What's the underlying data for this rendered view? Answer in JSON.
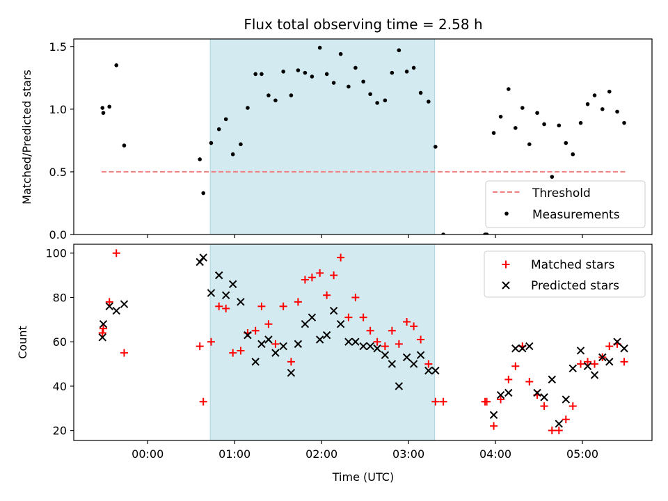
{
  "chart_data": [
    {
      "type": "scatter",
      "title": "Flux total observing time = 2.58 h",
      "xlabel": "",
      "ylabel": "Matched/Predicted stars",
      "xlim": [
        -0.85,
        5.8
      ],
      "ylim": [
        0,
        1.56
      ],
      "yticks": [
        0.0,
        0.5,
        1.0,
        1.5
      ],
      "ytick_labels": [
        "0.0",
        "0.5",
        "1.0",
        "1.5"
      ],
      "shaded_span": {
        "x0": 0.72,
        "x1": 3.3,
        "color": "#d3ebf0"
      },
      "threshold": {
        "name": "Threshold",
        "value": 0.5,
        "x0": -0.53,
        "x1": 5.5,
        "color": "#f08080"
      },
      "legend": {
        "position": "lower-right",
        "entries": [
          "Threshold",
          "Measurements"
        ]
      },
      "series": [
        {
          "name": "Measurements",
          "marker": "dot",
          "color": "#000000",
          "x": [
            -0.52,
            -0.51,
            -0.44,
            -0.36,
            -0.27,
            0.6,
            0.64,
            0.73,
            0.82,
            0.9,
            0.98,
            1.07,
            1.15,
            1.24,
            1.31,
            1.39,
            1.47,
            1.56,
            1.65,
            1.73,
            1.81,
            1.89,
            1.98,
            2.06,
            2.14,
            2.22,
            2.31,
            2.39,
            2.48,
            2.56,
            2.64,
            2.73,
            2.81,
            2.89,
            2.98,
            3.06,
            3.14,
            3.23,
            3.31,
            3.4,
            3.88,
            3.9,
            3.98,
            4.06,
            4.15,
            4.23,
            4.31,
            4.39,
            4.48,
            4.56,
            4.65,
            4.73,
            4.81,
            4.89,
            4.98,
            5.06,
            5.14,
            5.23,
            5.31,
            5.4,
            5.48
          ],
          "y": [
            1.01,
            0.97,
            1.02,
            1.35,
            0.71,
            0.6,
            0.33,
            0.73,
            0.84,
            0.92,
            0.64,
            0.72,
            1.01,
            1.28,
            1.28,
            1.11,
            1.07,
            1.3,
            1.11,
            1.31,
            1.29,
            1.26,
            1.49,
            1.28,
            1.21,
            1.44,
            1.18,
            1.33,
            1.22,
            1.12,
            1.05,
            1.07,
            1.29,
            1.47,
            1.3,
            1.33,
            1.13,
            1.06,
            0.7,
            0.0,
            0.0,
            0.0,
            0.81,
            0.94,
            1.16,
            0.85,
            1.01,
            0.72,
            0.97,
            0.88,
            0.46,
            0.87,
            0.73,
            0.64,
            0.89,
            1.04,
            1.11,
            1.0,
            1.14,
            0.98,
            0.89
          ]
        }
      ]
    },
    {
      "type": "scatter",
      "title": "",
      "xlabel": "Time (UTC)",
      "ylabel": "Count",
      "xlim": [
        -0.85,
        5.8
      ],
      "ylim": [
        15.5,
        104
      ],
      "yticks": [
        20,
        40,
        60,
        80,
        100
      ],
      "ytick_labels": [
        "20",
        "40",
        "60",
        "80",
        "100"
      ],
      "xticks": [
        0,
        1,
        2,
        3,
        4,
        5
      ],
      "xtick_labels": [
        "00:00",
        "01:00",
        "02:00",
        "03:00",
        "04:00",
        "05:00"
      ],
      "shaded_span": {
        "x0": 0.72,
        "x1": 3.3,
        "color": "#d3ebf0"
      },
      "legend": {
        "position": "top-right",
        "entries": [
          "Matched stars",
          "Predicted stars"
        ]
      },
      "series": [
        {
          "name": "Matched stars",
          "marker": "plus",
          "color": "#ff0000",
          "x": [
            -0.52,
            -0.51,
            -0.44,
            -0.36,
            -0.27,
            0.6,
            0.64,
            0.73,
            0.82,
            0.9,
            0.98,
            1.07,
            1.15,
            1.24,
            1.31,
            1.39,
            1.47,
            1.56,
            1.65,
            1.73,
            1.81,
            1.89,
            1.98,
            2.06,
            2.14,
            2.22,
            2.31,
            2.39,
            2.48,
            2.56,
            2.64,
            2.73,
            2.81,
            2.89,
            2.98,
            3.06,
            3.14,
            3.23,
            3.31,
            3.4,
            3.88,
            3.9,
            3.98,
            4.06,
            4.15,
            4.23,
            4.31,
            4.39,
            4.48,
            4.56,
            4.65,
            4.73,
            4.81,
            4.89,
            4.98,
            5.06,
            5.14,
            5.23,
            5.31,
            5.4,
            5.48
          ],
          "y": [
            64,
            66,
            78,
            100,
            55,
            58,
            33,
            60,
            76,
            75,
            55,
            56,
            64,
            65,
            76,
            68,
            59,
            76,
            51,
            78,
            88,
            89,
            91,
            81,
            90,
            98,
            71,
            80,
            71,
            65,
            60,
            58,
            65,
            59,
            69,
            67,
            61,
            50,
            33,
            33,
            33,
            33,
            22,
            34,
            43,
            49,
            58,
            42,
            36,
            31,
            20,
            20,
            25,
            31,
            50,
            51,
            50,
            53,
            58,
            59,
            51
          ]
        },
        {
          "name": "Predicted stars",
          "marker": "x",
          "color": "#000000",
          "x": [
            -0.52,
            -0.51,
            -0.44,
            -0.36,
            -0.27,
            0.6,
            0.64,
            0.73,
            0.82,
            0.9,
            0.98,
            1.07,
            1.15,
            1.24,
            1.31,
            1.39,
            1.47,
            1.56,
            1.65,
            1.73,
            1.81,
            1.89,
            1.98,
            2.06,
            2.14,
            2.22,
            2.31,
            2.39,
            2.48,
            2.56,
            2.64,
            2.73,
            2.81,
            2.89,
            2.98,
            3.06,
            3.14,
            3.23,
            3.31,
            3.98,
            4.06,
            4.15,
            4.23,
            4.31,
            4.39,
            4.48,
            4.56,
            4.65,
            4.73,
            4.81,
            4.89,
            4.98,
            5.06,
            5.14,
            5.23,
            5.31,
            5.4,
            5.48
          ],
          "y": [
            62,
            68,
            76,
            74,
            77,
            96,
            98,
            82,
            90,
            81,
            86,
            78,
            63,
            51,
            59,
            61,
            55,
            58,
            46,
            59,
            68,
            71,
            61,
            63,
            74,
            68,
            60,
            60,
            58,
            58,
            57,
            54,
            50,
            40,
            53,
            50,
            54,
            47,
            47,
            27,
            36,
            37,
            57,
            57,
            58,
            37,
            35,
            43,
            23,
            34,
            48,
            56,
            49,
            45,
            53,
            51,
            60,
            57
          ]
        }
      ]
    }
  ]
}
